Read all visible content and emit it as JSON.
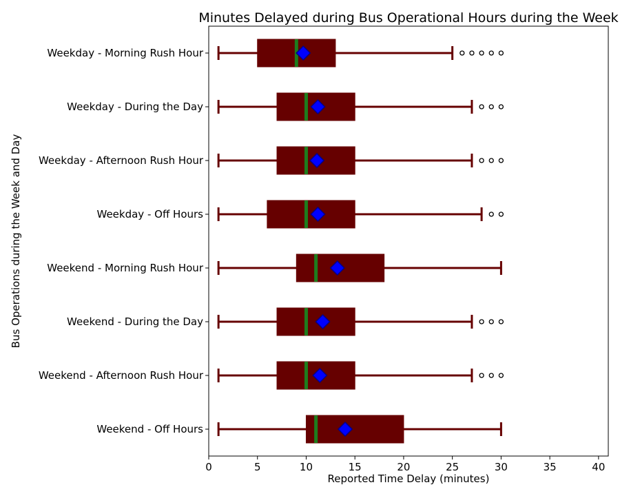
{
  "chart_data": {
    "type": "boxplot",
    "orientation": "horizontal",
    "title": "Minutes Delayed during Bus Operational Hours during the Week",
    "xlabel": "Reported Time Delay (minutes)",
    "ylabel": "Bus Operations during the Week and Day",
    "xlim": [
      0,
      41
    ],
    "xticks": [
      0,
      5,
      10,
      15,
      20,
      25,
      30,
      35,
      40
    ],
    "grid": false,
    "colors": {
      "box_fill": "#660000",
      "whisker": "#660000",
      "median": "#1e7d1e",
      "mean_marker": "#0000ff",
      "mean_edge": "#00008b",
      "outlier_edge": "#000000"
    },
    "series": [
      {
        "category": "Weekday - Morning Rush Hour",
        "whisker_low": 1,
        "q1": 5,
        "median": 9,
        "q3": 13,
        "whisker_high": 25,
        "mean": 9.7,
        "outliers": [
          26,
          27,
          28,
          29,
          30
        ]
      },
      {
        "category": "Weekday - During the Day",
        "whisker_low": 1,
        "q1": 7,
        "median": 10,
        "q3": 15,
        "whisker_high": 27,
        "mean": 11.2,
        "outliers": [
          28,
          29,
          30
        ]
      },
      {
        "category": "Weekday - Afternoon Rush Hour",
        "whisker_low": 1,
        "q1": 7,
        "median": 10,
        "q3": 15,
        "whisker_high": 27,
        "mean": 11.1,
        "outliers": [
          28,
          29,
          30
        ]
      },
      {
        "category": "Weekday - Off Hours",
        "whisker_low": 1,
        "q1": 6,
        "median": 10,
        "q3": 15,
        "whisker_high": 28,
        "mean": 11.2,
        "outliers": [
          29,
          30
        ]
      },
      {
        "category": "Weekend - Morning Rush Hour",
        "whisker_low": 1,
        "q1": 9,
        "median": 11,
        "q3": 18,
        "whisker_high": 30,
        "mean": 13.2,
        "outliers": []
      },
      {
        "category": "Weekend - During the Day",
        "whisker_low": 1,
        "q1": 7,
        "median": 10,
        "q3": 15,
        "whisker_high": 27,
        "mean": 11.7,
        "outliers": [
          28,
          29,
          30
        ]
      },
      {
        "category": "Weekend - Afternoon Rush Hour",
        "whisker_low": 1,
        "q1": 7,
        "median": 10,
        "q3": 15,
        "whisker_high": 27,
        "mean": 11.4,
        "outliers": [
          28,
          29,
          30
        ]
      },
      {
        "category": "Weekend - Off Hours",
        "whisker_low": 1,
        "q1": 10,
        "median": 11,
        "q3": 20,
        "whisker_high": 30,
        "mean": 14,
        "outliers": []
      }
    ]
  }
}
